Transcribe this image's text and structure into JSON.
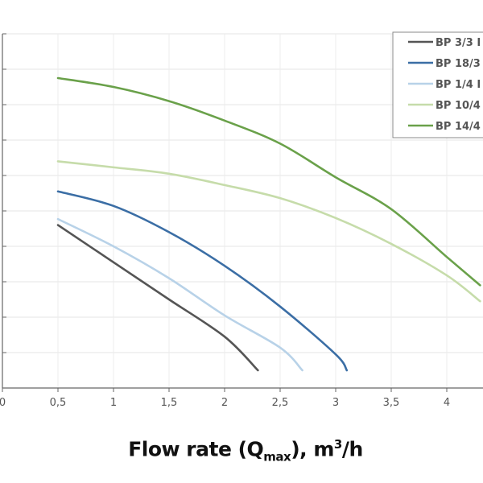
{
  "chart_data": {
    "type": "line",
    "title": "",
    "xlabel": "Flow rate (Qmax), m³/h",
    "xlabel_parts": {
      "pre": "Flow rate (Q",
      "sub": "max",
      "mid": "), m",
      "sup": "3",
      "post": "/h"
    },
    "ylabel": "",
    "xlim": [
      0,
      4.3
    ],
    "ylim": [
      0,
      10
    ],
    "x_ticks": [
      0,
      0.5,
      1,
      1.5,
      2,
      2.5,
      3,
      3.5,
      4
    ],
    "x_tick_labels": [
      "0",
      "0,5",
      "1",
      "1,5",
      "2",
      "2,5",
      "3",
      "3,5",
      "4"
    ],
    "y_grid_step": 1,
    "grid": true,
    "legend_position": "top-right",
    "series": [
      {
        "name": "BP 3/3 I",
        "color": "#555555",
        "x": [
          0.5,
          1,
          1.5,
          2,
          2.3
        ],
        "y": [
          4.6,
          3.55,
          2.5,
          1.45,
          0.5
        ]
      },
      {
        "name": "BP 18/3",
        "color": "#3b6ea5",
        "x": [
          0.5,
          1,
          1.5,
          2,
          2.5,
          3,
          3.1
        ],
        "y": [
          5.55,
          5.14,
          4.4,
          3.45,
          2.3,
          0.95,
          0.5
        ]
      },
      {
        "name": "BP 1/4 I",
        "color": "#b8d2e8",
        "x": [
          0.5,
          1,
          1.5,
          2,
          2.5,
          2.7
        ],
        "y": [
          4.77,
          4.0,
          3.1,
          2.05,
          1.14,
          0.5
        ]
      },
      {
        "name": "BP 10/4",
        "color": "#c6dcaa",
        "x": [
          0.5,
          1,
          1.5,
          2,
          2.5,
          3,
          3.5,
          4,
          4.3
        ],
        "y": [
          6.4,
          6.23,
          6.05,
          5.73,
          5.36,
          4.8,
          4.07,
          3.18,
          2.45
        ]
      },
      {
        "name": "BP 14/4",
        "color": "#6aa14a",
        "x": [
          0.5,
          1,
          1.5,
          2,
          2.5,
          3,
          3.5,
          4,
          4.3
        ],
        "y": [
          8.75,
          8.5,
          8.1,
          7.55,
          6.9,
          5.95,
          5.05,
          3.7,
          2.9
        ]
      }
    ]
  }
}
